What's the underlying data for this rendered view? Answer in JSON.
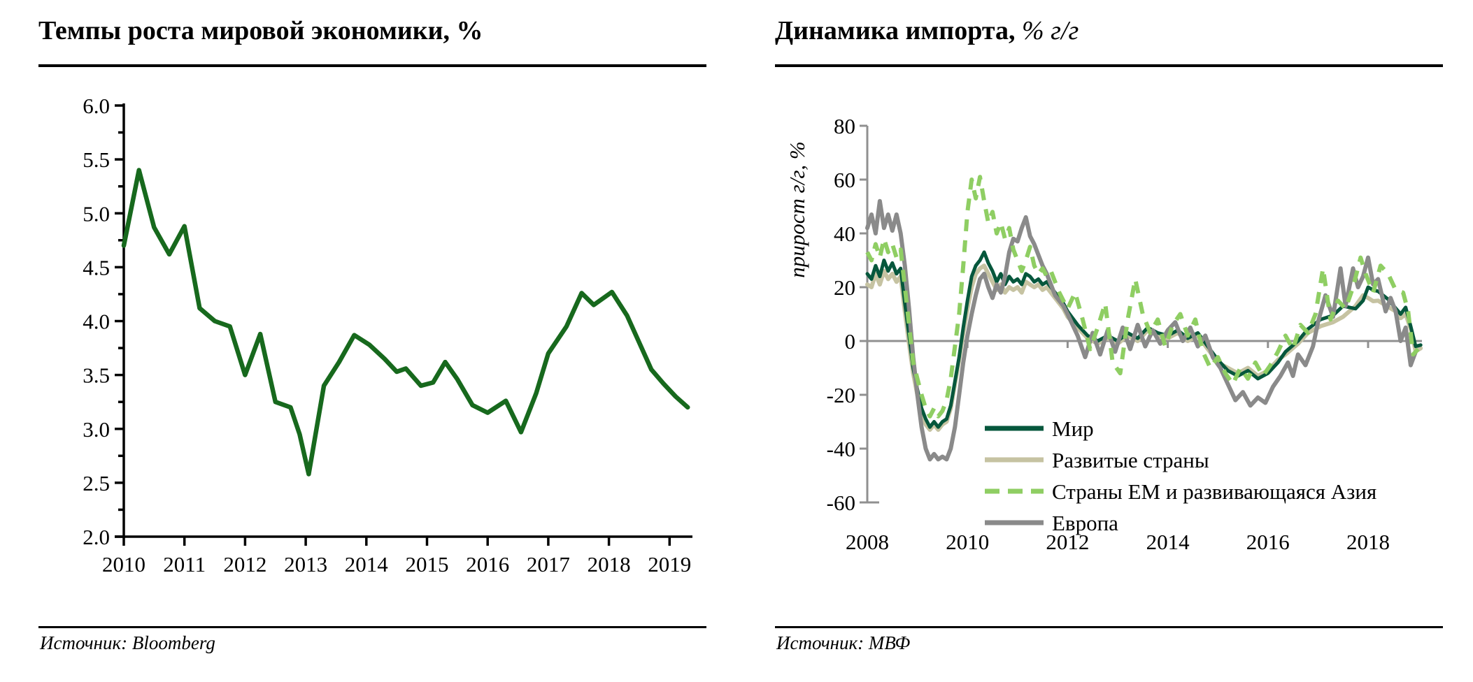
{
  "panels": [
    {
      "title_main": "Темпы роста мировой экономики, %",
      "title_suffix": "",
      "source": "Источник: Bloomberg"
    },
    {
      "title_main": "Динамика импорта,",
      "title_suffix": " % г/г",
      "source": "Источник: МВФ"
    }
  ],
  "colors": {
    "left_line": "#17691d",
    "world": "#06573c",
    "developed": "#c6c3a2",
    "em_asia": "#8fce63",
    "europe": "#8a8a8a",
    "axis_black": "#000000",
    "axis_gray": "#909090"
  },
  "chart_data": [
    {
      "type": "line",
      "title": "Темпы роста мировой экономики, %",
      "xlabel": "",
      "ylabel": "",
      "xlim": [
        2010,
        2019.4
      ],
      "ylim": [
        2.0,
        6.0
      ],
      "grid": false,
      "x_ticks": [
        2010,
        2011,
        2012,
        2013,
        2014,
        2015,
        2016,
        2017,
        2018,
        2019
      ],
      "y_tick_values": [
        6.0,
        5.5,
        5.0,
        4.5,
        4.0,
        3.5,
        3.0,
        2.5,
        2.0
      ],
      "y_tick_labels": [
        "6.0",
        "5.5",
        "5.0",
        "4.5",
        "4.0",
        "3.5",
        "3.0",
        "2.5",
        "2.0"
      ],
      "y_minor_step": 0.25,
      "source": "Bloomberg",
      "series": [
        {
          "id": "world-gdp-growth",
          "name": "Темпы роста мировой экономики",
          "color": "#17691d",
          "dashed": false,
          "x": [
            2010.0,
            2010.25,
            2010.5,
            2010.75,
            2011.0,
            2011.25,
            2011.5,
            2011.75,
            2012.0,
            2012.25,
            2012.5,
            2012.75,
            2012.9,
            2013.05,
            2013.3,
            2013.55,
            2013.8,
            2014.05,
            2014.3,
            2014.5,
            2014.65,
            2014.9,
            2015.1,
            2015.3,
            2015.5,
            2015.75,
            2016.0,
            2016.3,
            2016.55,
            2016.8,
            2017.0,
            2017.3,
            2017.55,
            2017.75,
            2018.05,
            2018.3,
            2018.5,
            2018.7,
            2018.9,
            2019.1,
            2019.3
          ],
          "y": [
            4.7,
            5.4,
            4.87,
            4.62,
            4.88,
            4.12,
            4.0,
            3.95,
            3.5,
            3.88,
            3.25,
            3.2,
            2.95,
            2.58,
            3.4,
            3.62,
            3.87,
            3.78,
            3.65,
            3.53,
            3.56,
            3.4,
            3.43,
            3.62,
            3.46,
            3.22,
            3.15,
            3.26,
            2.97,
            3.33,
            3.7,
            3.95,
            4.26,
            4.15,
            4.27,
            4.05,
            3.8,
            3.55,
            3.42,
            3.3,
            3.2
          ]
        }
      ]
    },
    {
      "type": "line",
      "title": "Динамика импорта, % г/г",
      "xlabel": "",
      "ylabel": "прирост г/г, %",
      "xlim": [
        2008,
        2019.1
      ],
      "ylim": [
        -60,
        80
      ],
      "grid": false,
      "zero_line": true,
      "x_ticks": [
        2008,
        2010,
        2012,
        2014,
        2016,
        2018
      ],
      "y_tick_values": [
        80,
        60,
        40,
        20,
        0,
        -20,
        -40,
        -60
      ],
      "y_tick_labels": [
        "80",
        "60",
        "40",
        "20",
        "0",
        "-20",
        "-40",
        "-60"
      ],
      "legend_position": "inside-bottom-right",
      "source": "МВФ",
      "series": [
        {
          "id": "razvitye-strany",
          "name": "Развитые страны",
          "color": "#c6c3a2",
          "dashed": false,
          "legend_order": 2,
          "monthly_start": 2008,
          "monthly": [
            21,
            20,
            25,
            21,
            26,
            23,
            25,
            22,
            24,
            11,
            -1,
            -12,
            -20,
            -27,
            -31,
            -33,
            -31,
            -33,
            -31,
            -30,
            -25,
            -16,
            -7,
            3,
            12,
            20,
            25,
            27,
            28,
            25,
            22,
            19,
            21,
            18,
            20,
            19,
            20,
            18,
            22,
            21,
            20,
            21,
            19,
            20,
            18,
            16,
            14,
            12
          ],
          "extra_x": [
            2012.0,
            2012.2,
            2012.4,
            2012.6,
            2012.8,
            2013.0,
            2013.2,
            2013.4,
            2013.6,
            2013.8,
            2014.0,
            2014.2,
            2014.4,
            2014.6,
            2014.8,
            2015.0,
            2015.2,
            2015.4,
            2015.6,
            2015.8,
            2016.0,
            2016.2,
            2016.35,
            2016.6,
            2016.8,
            2017.05,
            2017.3,
            2017.5,
            2017.75,
            2017.9,
            2018.0,
            2018.1,
            2018.2,
            2018.4,
            2018.55,
            2018.65,
            2018.75,
            2018.85,
            2018.95,
            2019.05
          ],
          "extra_y": [
            9,
            5,
            1,
            -1,
            1,
            -1,
            2,
            0,
            4,
            2,
            1,
            3,
            0,
            2,
            -3,
            -8,
            -10,
            -12,
            -10,
            -13,
            -11,
            -7,
            -5,
            -1,
            3,
            5.5,
            7,
            9,
            13,
            17,
            16,
            14.8,
            15,
            12.7,
            11,
            8.5,
            10,
            4.5,
            -3.8,
            -2.7
          ]
        },
        {
          "id": "mir",
          "name": "Мир",
          "color": "#06573c",
          "dashed": false,
          "legend_order": 1,
          "monthly_start": 2008,
          "monthly": [
            25,
            23,
            28,
            24,
            30,
            26,
            29,
            25,
            27,
            14,
            2,
            -10,
            -18,
            -25,
            -29,
            -32,
            -30,
            -32,
            -30,
            -29,
            -24,
            -15,
            -6,
            5,
            15,
            24,
            28,
            30,
            33,
            29,
            26,
            22,
            25,
            21,
            24,
            22,
            23,
            21,
            25,
            24,
            22,
            23,
            21,
            22,
            20,
            18,
            16,
            14
          ],
          "extra_x": [
            2012.0,
            2012.2,
            2012.4,
            2012.6,
            2012.8,
            2013.0,
            2013.2,
            2013.4,
            2013.6,
            2013.8,
            2014.0,
            2014.2,
            2014.4,
            2014.6,
            2014.8,
            2015.0,
            2015.2,
            2015.4,
            2015.6,
            2015.8,
            2016.0,
            2016.2,
            2016.35,
            2016.6,
            2016.8,
            2017.05,
            2017.3,
            2017.5,
            2017.75,
            2017.9,
            2018.0,
            2018.1,
            2018.2,
            2018.4,
            2018.65,
            2018.75,
            2018.85,
            2018.95,
            2019.05
          ],
          "extra_y": [
            11,
            6,
            2,
            0,
            2,
            0,
            3,
            1,
            5,
            3,
            2,
            4,
            1,
            3,
            -2,
            -7,
            -11,
            -13,
            -11,
            -14,
            -12,
            -8,
            -4,
            0,
            4.5,
            8,
            9.5,
            13,
            12,
            15,
            20,
            19,
            18.5,
            15.5,
            10,
            12.5,
            5.5,
            -2,
            -1.5
          ]
        },
        {
          "id": "evropa",
          "name": "Европа",
          "color": "#8a8a8a",
          "dashed": false,
          "legend_order": 4,
          "monthly_start": 2008,
          "monthly": [
            42,
            47,
            40,
            52,
            42,
            47,
            41,
            47,
            40,
            28,
            12,
            -6,
            -20,
            -32,
            -40,
            -44,
            -42,
            -44,
            -43,
            -44,
            -40,
            -32,
            -20,
            -8,
            2,
            10,
            17,
            23,
            25,
            20,
            16,
            21,
            18,
            24,
            33,
            38,
            37,
            42,
            46,
            39,
            36,
            32,
            28,
            25,
            21,
            17,
            15,
            13
          ],
          "extra_x": [
            2012.0,
            2012.2,
            2012.35,
            2012.5,
            2012.65,
            2012.8,
            2012.95,
            2013.1,
            2013.25,
            2013.4,
            2013.55,
            2013.7,
            2013.85,
            2014.0,
            2014.15,
            2014.3,
            2014.45,
            2014.6,
            2014.75,
            2014.9,
            2015.05,
            2015.2,
            2015.35,
            2015.5,
            2015.65,
            2015.8,
            2015.95,
            2016.1,
            2016.25,
            2016.4,
            2016.5,
            2016.6,
            2016.75,
            2016.9,
            2017.0,
            2017.15,
            2017.3,
            2017.45,
            2017.55,
            2017.7,
            2017.8,
            2017.9,
            2018.0,
            2018.1,
            2018.2,
            2018.35,
            2018.45,
            2018.55,
            2018.65,
            2018.75,
            2018.85,
            2018.95
          ],
          "extra_y": [
            10,
            2,
            -6,
            3,
            -5,
            4,
            -4,
            5,
            -3,
            6,
            -2,
            4,
            -1,
            4,
            7,
            0,
            5,
            -2,
            2,
            -6,
            -10,
            -16,
            -22,
            -19,
            -24,
            -21,
            -23,
            -17,
            -13,
            -8,
            -13,
            -5,
            -9,
            -2,
            7,
            17,
            9,
            27,
            13,
            27,
            20,
            24,
            31,
            21,
            23,
            11,
            16,
            11,
            0,
            5,
            -9,
            -4
          ]
        },
        {
          "id": "em-asia",
          "name": "Страны EM и развивающаяся Азия",
          "color": "#8fce63",
          "dashed": true,
          "legend_order": 3,
          "monthly_start": 2008,
          "monthly": [
            33,
            30,
            36,
            31,
            38,
            33,
            36,
            31,
            34,
            20,
            6,
            -8,
            -14,
            -20,
            -25,
            -28,
            -25,
            -28,
            -26,
            -22,
            -14,
            -2,
            10,
            28,
            48,
            60,
            53,
            61,
            52,
            44,
            48,
            40,
            44,
            38,
            42,
            34,
            30,
            26,
            30,
            35,
            28,
            25,
            27,
            24,
            26,
            22,
            18,
            15
          ],
          "extra_x": [
            2012.0,
            2012.15,
            2012.3,
            2012.45,
            2012.6,
            2012.75,
            2012.9,
            2013.05,
            2013.2,
            2013.35,
            2013.5,
            2013.65,
            2013.8,
            2013.95,
            2014.1,
            2014.25,
            2014.4,
            2014.55,
            2014.7,
            2014.85,
            2015.0,
            2015.15,
            2015.3,
            2015.45,
            2015.6,
            2015.75,
            2015.9,
            2016.05,
            2016.2,
            2016.35,
            2016.5,
            2016.65,
            2016.8,
            2016.95,
            2017.1,
            2017.25,
            2017.4,
            2017.55,
            2017.7,
            2017.85,
            2017.95,
            2018.1,
            2018.25,
            2018.4,
            2018.55,
            2018.7,
            2018.8,
            2018.9,
            2019.0
          ],
          "extra_y": [
            12,
            18,
            8,
            -3,
            5,
            14,
            -8,
            -12,
            8,
            23,
            10,
            3,
            8,
            -2,
            6,
            10,
            2,
            8,
            -4,
            -10,
            -6,
            -12,
            -16,
            -10,
            -14,
            -8,
            -13,
            -9,
            -4,
            2,
            -3,
            6,
            3,
            10,
            27,
            8,
            15,
            12,
            20,
            31,
            25,
            18,
            28,
            25,
            19,
            18,
            11,
            -5,
            -3
          ]
        }
      ],
      "legend": [
        "Мир",
        "Развитые страны",
        "Страны EM и развивающаяся Азия",
        "Европа"
      ]
    }
  ]
}
